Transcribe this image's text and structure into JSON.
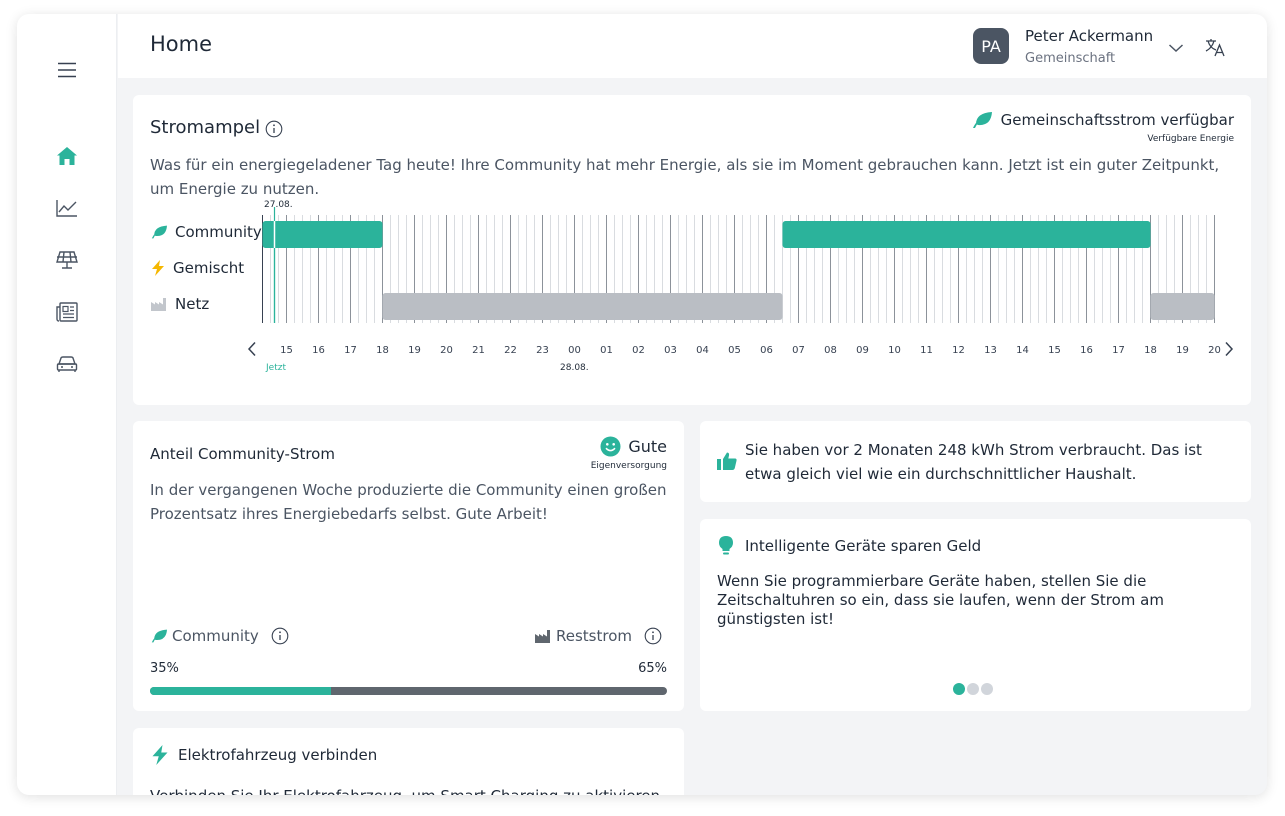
{
  "header": {
    "title": "Home",
    "avatar_initials": "PA",
    "user_name": "Peter Ackermann",
    "user_role": "Gemeinschaft"
  },
  "sidebar": {
    "items": [
      {
        "icon": "home-icon",
        "active": true
      },
      {
        "icon": "chart-icon",
        "active": false
      },
      {
        "icon": "solar-panel-icon",
        "active": false
      },
      {
        "icon": "news-icon",
        "active": false
      },
      {
        "icon": "car-icon",
        "active": false
      }
    ]
  },
  "colors": {
    "accent": "#2bb39b",
    "grid_bar": "#babec4",
    "dark_bar": "#5f666e",
    "lightning": "#f5b700"
  },
  "stromampel": {
    "title": "Stromampel",
    "status_label": "Gemeinschaftsstrom verfügbar",
    "status_sub": "Verfügbare Energie",
    "description": "Was für ein energiegeladener Tag heute! Ihre Community hat mehr Energie, als sie im Moment gebrauchen kann. Jetzt ist ein guter Zeitpunkt, um Energie zu nutzen.",
    "date_start": "27.08.",
    "date_next": "28.08.",
    "now_label": "Jetzt",
    "rows": [
      "Community",
      "Gemischt",
      "Netz"
    ],
    "hours": [
      "15",
      "16",
      "17",
      "18",
      "19",
      "20",
      "21",
      "22",
      "23",
      "00",
      "01",
      "02",
      "03",
      "04",
      "05",
      "06",
      "07",
      "08",
      "09",
      "10",
      "11",
      "12",
      "13",
      "14",
      "15",
      "16",
      "17",
      "18",
      "19",
      "20"
    ],
    "segments": [
      {
        "row": "Community",
        "from": "14:30",
        "to": "18:00"
      },
      {
        "row": "Netz",
        "from": "18:00",
        "to": "06:30"
      },
      {
        "row": "Community",
        "from": "06:30",
        "to": "18:00"
      },
      {
        "row": "Netz",
        "from": "18:00",
        "to": "20:00"
      }
    ]
  },
  "anteil": {
    "title": "Anteil Community-Strom",
    "badge_label": "Gute",
    "badge_sub": "Eigenversorgung",
    "description": "In der vergangenen Woche produzierte die Community einen großen Prozentsatz ihres Energiebedarfs selbst. Gute Arbeit!",
    "community_label": "Community",
    "rest_label": "Reststrom",
    "community_pct_text": "35%",
    "rest_pct_text": "65%",
    "community_share": 0.35
  },
  "usage": {
    "text": "Sie haben vor 2 Monaten 248 kWh Strom verbraucht. Das ist etwa gleich viel wie ein durchschnittlicher Haushalt."
  },
  "tip": {
    "title": "Intelligente Geräte sparen Geld",
    "text": "Wenn Sie programmierbare Geräte haben,  stellen Sie die Zeitschaltuhren so ein, dass sie laufen, wenn der Strom am günstigsten ist!",
    "pages": 3,
    "active_page": 1
  },
  "ev": {
    "title": "Elektrofahrzeug verbinden",
    "text": "Verbinden Sie Ihr Elektrofahrzeug, um Smart Charging zu aktivieren."
  }
}
